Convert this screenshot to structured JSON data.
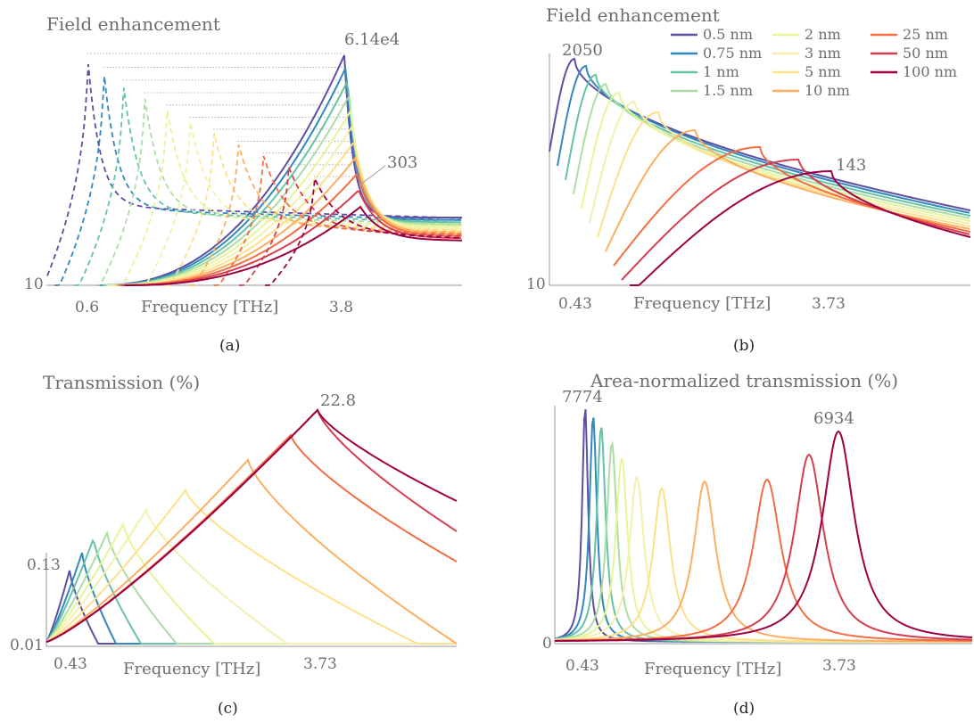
{
  "legend": {
    "entries": [
      {
        "label": "0.5 nm",
        "color": "#5e4fa2"
      },
      {
        "label": "0.75 nm",
        "color": "#3288bd"
      },
      {
        "label": "1 nm",
        "color": "#66c2a5"
      },
      {
        "label": "1.5 nm",
        "color": "#abdda4"
      },
      {
        "label": "2 nm",
        "color": "#e6f598"
      },
      {
        "label": "3 nm",
        "color": "#f4f0b0"
      },
      {
        "label": "5 nm",
        "color": "#fee08b"
      },
      {
        "label": "10 nm",
        "color": "#fdae61"
      },
      {
        "label": "25 nm",
        "color": "#f46d43"
      },
      {
        "label": "50 nm",
        "color": "#d53e4f"
      },
      {
        "label": "100 nm",
        "color": "#9e0142"
      }
    ]
  },
  "chart_data": [
    {
      "type": "line",
      "panel": "(a)",
      "title": "Field enhancement",
      "xlabel": "Frequency [THz]",
      "ylabel": "",
      "xticks": [
        "0.6",
        "3.8"
      ],
      "yticks": [
        "10"
      ],
      "yscale": "log",
      "annotations": [
        "6.14e4",
        "303"
      ],
      "series": [
        {
          "name": "0.5 nm",
          "style": "solid and dashed",
          "peak_dashed": 61400,
          "peak_solid": 61400
        },
        {
          "name": "0.75 nm",
          "style": "solid and dashed"
        },
        {
          "name": "1 nm",
          "style": "solid and dashed"
        },
        {
          "name": "1.5 nm",
          "style": "solid and dashed"
        },
        {
          "name": "2 nm",
          "style": "solid and dashed"
        },
        {
          "name": "3 nm",
          "style": "solid and dashed"
        },
        {
          "name": "5 nm",
          "style": "solid and dashed"
        },
        {
          "name": "10 nm",
          "style": "solid and dashed"
        },
        {
          "name": "25 nm",
          "style": "solid and dashed"
        },
        {
          "name": "50 nm",
          "style": "solid and dashed"
        },
        {
          "name": "100 nm",
          "style": "solid and dashed",
          "peak_solid": 303
        }
      ],
      "grid": false
    },
    {
      "type": "line",
      "panel": "(b)",
      "title": "Field enhancement",
      "xlabel": "Frequency [THz]",
      "ylabel": "",
      "xticks": [
        "0.43",
        "3.73"
      ],
      "yticks": [
        "10"
      ],
      "yscale": "log",
      "annotations": [
        "2050",
        "143"
      ],
      "series_peaks": [
        2050,
        null,
        null,
        null,
        null,
        null,
        null,
        null,
        null,
        null,
        143
      ],
      "legend_position": "top-right",
      "grid": false
    },
    {
      "type": "line",
      "panel": "(c)",
      "title": "Transmission (%)",
      "xlabel": "Frequency [THz]",
      "ylabel": "",
      "xticks": [
        "0.43",
        "3.73"
      ],
      "yticks": [
        "0.01",
        "0.13"
      ],
      "yscale": "log",
      "annotations": [
        "22.8"
      ],
      "series_peaks": [
        0.13,
        null,
        null,
        null,
        null,
        null,
        null,
        null,
        null,
        null,
        22.8
      ],
      "grid": false
    },
    {
      "type": "line",
      "panel": "(d)",
      "title": "Area-normalized transmission (%)",
      "xlabel": "Frequency [THz]",
      "ylabel": "",
      "xticks": [
        "0.43",
        "3.73"
      ],
      "yticks": [
        "0"
      ],
      "yscale": "linear",
      "annotations": [
        "7774",
        "6934"
      ],
      "series_peaks": [
        7774,
        null,
        null,
        null,
        null,
        null,
        null,
        null,
        null,
        null,
        6934
      ],
      "grid": false
    }
  ],
  "captions": [
    "(a)",
    "(b)",
    "(c)",
    "(d)"
  ]
}
